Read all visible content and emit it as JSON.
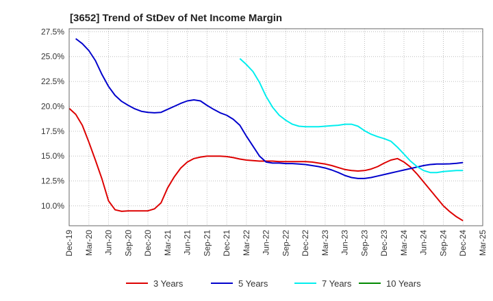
{
  "chart_data": {
    "type": "line",
    "title": "[3652]  Trend of StDev of Net Income Margin",
    "xlabel": "",
    "ylabel": "",
    "x_labels": [
      "Dec-19",
      "Mar-20",
      "Jun-20",
      "Sep-20",
      "Dec-20",
      "Mar-21",
      "Jun-21",
      "Sep-21",
      "Dec-21",
      "Mar-22",
      "Jun-22",
      "Sep-22",
      "Dec-22",
      "Mar-23",
      "Jun-23",
      "Sep-23",
      "Dec-23",
      "Mar-24",
      "Jun-24",
      "Sep-24",
      "Dec-24",
      "Mar-25"
    ],
    "y_ticks": [
      10.0,
      12.5,
      15.0,
      17.5,
      20.0,
      22.5,
      25.0,
      27.5
    ],
    "y_tick_labels": [
      "10.0%",
      "12.5%",
      "15.0%",
      "17.5%",
      "20.0%",
      "22.5%",
      "25.0%",
      "27.5%"
    ],
    "ylim": [
      8.0,
      27.8
    ],
    "grid": true,
    "legend_position": "bottom",
    "series": [
      {
        "name": "3 Years",
        "color": "#dd0000",
        "values": [
          [
            "Dec-19",
            19.8
          ],
          [
            "Jan-20",
            19.2
          ],
          [
            "Feb-20",
            18.1
          ],
          [
            "Mar-20",
            16.4
          ],
          [
            "Apr-20",
            14.6
          ],
          [
            "May-20",
            12.7
          ],
          [
            "Jun-20",
            10.5
          ],
          [
            "Jul-20",
            9.6
          ],
          [
            "Aug-20",
            9.45
          ],
          [
            "Sep-20",
            9.5
          ],
          [
            "Oct-20",
            9.5
          ],
          [
            "Nov-20",
            9.5
          ],
          [
            "Dec-20",
            9.5
          ],
          [
            "Jan-21",
            9.7
          ],
          [
            "Feb-21",
            10.3
          ],
          [
            "Mar-21",
            11.8
          ],
          [
            "Apr-21",
            12.9
          ],
          [
            "May-21",
            13.8
          ],
          [
            "Jun-21",
            14.4
          ],
          [
            "Jul-21",
            14.75
          ],
          [
            "Aug-21",
            14.9
          ],
          [
            "Sep-21",
            15.0
          ],
          [
            "Oct-21",
            15.0
          ],
          [
            "Nov-21",
            15.0
          ],
          [
            "Dec-21",
            14.95
          ],
          [
            "Jan-22",
            14.85
          ],
          [
            "Feb-22",
            14.7
          ],
          [
            "Mar-22",
            14.6
          ],
          [
            "Apr-22",
            14.55
          ],
          [
            "May-22",
            14.5
          ],
          [
            "Jun-22",
            14.5
          ],
          [
            "Jul-22",
            14.5
          ],
          [
            "Aug-22",
            14.45
          ],
          [
            "Sep-22",
            14.45
          ],
          [
            "Oct-22",
            14.45
          ],
          [
            "Nov-22",
            14.45
          ],
          [
            "Dec-22",
            14.45
          ],
          [
            "Jan-23",
            14.4
          ],
          [
            "Feb-23",
            14.3
          ],
          [
            "Mar-23",
            14.2
          ],
          [
            "Apr-23",
            14.05
          ],
          [
            "May-23",
            13.85
          ],
          [
            "Jun-23",
            13.65
          ],
          [
            "Jul-23",
            13.55
          ],
          [
            "Aug-23",
            13.5
          ],
          [
            "Sep-23",
            13.55
          ],
          [
            "Oct-23",
            13.7
          ],
          [
            "Nov-23",
            13.95
          ],
          [
            "Dec-23",
            14.3
          ],
          [
            "Jan-24",
            14.6
          ],
          [
            "Feb-24",
            14.75
          ],
          [
            "Mar-24",
            14.4
          ],
          [
            "Apr-24",
            13.9
          ],
          [
            "May-24",
            13.2
          ],
          [
            "Jun-24",
            12.4
          ],
          [
            "Jul-24",
            11.6
          ],
          [
            "Aug-24",
            10.8
          ],
          [
            "Sep-24",
            10.0
          ],
          [
            "Oct-24",
            9.4
          ],
          [
            "Nov-24",
            8.9
          ],
          [
            "Dec-24",
            8.5
          ]
        ]
      },
      {
        "name": "5 Years",
        "color": "#0000cc",
        "values": [
          [
            "Jan-20",
            26.8
          ],
          [
            "Feb-20",
            26.3
          ],
          [
            "Mar-20",
            25.6
          ],
          [
            "Apr-20",
            24.6
          ],
          [
            "May-20",
            23.2
          ],
          [
            "Jun-20",
            22.0
          ],
          [
            "Jul-20",
            21.1
          ],
          [
            "Aug-20",
            20.5
          ],
          [
            "Sep-20",
            20.1
          ],
          [
            "Oct-20",
            19.75
          ],
          [
            "Nov-20",
            19.5
          ],
          [
            "Dec-20",
            19.4
          ],
          [
            "Jan-21",
            19.35
          ],
          [
            "Feb-21",
            19.4
          ],
          [
            "Mar-21",
            19.7
          ],
          [
            "Apr-21",
            20.0
          ],
          [
            "May-21",
            20.3
          ],
          [
            "Jun-21",
            20.55
          ],
          [
            "Jul-21",
            20.65
          ],
          [
            "Aug-21",
            20.55
          ],
          [
            "Sep-21",
            20.1
          ],
          [
            "Oct-21",
            19.7
          ],
          [
            "Nov-21",
            19.35
          ],
          [
            "Dec-21",
            19.1
          ],
          [
            "Jan-22",
            18.7
          ],
          [
            "Feb-22",
            18.1
          ],
          [
            "Mar-22",
            17.0
          ],
          [
            "Apr-22",
            16.0
          ],
          [
            "May-22",
            15.0
          ],
          [
            "Jun-22",
            14.4
          ],
          [
            "Jul-22",
            14.3
          ],
          [
            "Aug-22",
            14.3
          ],
          [
            "Sep-22",
            14.25
          ],
          [
            "Oct-22",
            14.25
          ],
          [
            "Nov-22",
            14.2
          ],
          [
            "Dec-22",
            14.15
          ],
          [
            "Jan-23",
            14.05
          ],
          [
            "Feb-23",
            13.95
          ],
          [
            "Mar-23",
            13.8
          ],
          [
            "Apr-23",
            13.6
          ],
          [
            "May-23",
            13.35
          ],
          [
            "Jun-23",
            13.05
          ],
          [
            "Jul-23",
            12.85
          ],
          [
            "Aug-23",
            12.75
          ],
          [
            "Sep-23",
            12.75
          ],
          [
            "Oct-23",
            12.85
          ],
          [
            "Nov-23",
            13.0
          ],
          [
            "Dec-23",
            13.15
          ],
          [
            "Jan-24",
            13.3
          ],
          [
            "Feb-24",
            13.45
          ],
          [
            "Mar-24",
            13.6
          ],
          [
            "Apr-24",
            13.75
          ],
          [
            "May-24",
            13.9
          ],
          [
            "Jun-24",
            14.05
          ],
          [
            "Jul-24",
            14.15
          ],
          [
            "Aug-24",
            14.2
          ],
          [
            "Sep-24",
            14.2
          ],
          [
            "Oct-24",
            14.22
          ],
          [
            "Nov-24",
            14.28
          ],
          [
            "Dec-24",
            14.35
          ]
        ]
      },
      {
        "name": "7 Years",
        "color": "#00eeee",
        "values": [
          [
            "Feb-22",
            24.8
          ],
          [
            "Mar-22",
            24.2
          ],
          [
            "Apr-22",
            23.5
          ],
          [
            "May-22",
            22.4
          ],
          [
            "Jun-22",
            21.0
          ],
          [
            "Jul-22",
            19.9
          ],
          [
            "Aug-22",
            19.1
          ],
          [
            "Sep-22",
            18.6
          ],
          [
            "Oct-22",
            18.2
          ],
          [
            "Nov-22",
            18.0
          ],
          [
            "Dec-22",
            17.95
          ],
          [
            "Jan-23",
            17.95
          ],
          [
            "Feb-23",
            17.95
          ],
          [
            "Mar-23",
            18.0
          ],
          [
            "Apr-23",
            18.05
          ],
          [
            "May-23",
            18.1
          ],
          [
            "Jun-23",
            18.2
          ],
          [
            "Jul-23",
            18.2
          ],
          [
            "Aug-23",
            18.0
          ],
          [
            "Sep-23",
            17.55
          ],
          [
            "Oct-23",
            17.2
          ],
          [
            "Nov-23",
            16.95
          ],
          [
            "Dec-23",
            16.75
          ],
          [
            "Jan-24",
            16.5
          ],
          [
            "Feb-24",
            15.9
          ],
          [
            "Mar-24",
            15.2
          ],
          [
            "Apr-24",
            14.5
          ],
          [
            "May-24",
            13.95
          ],
          [
            "Jun-24",
            13.55
          ],
          [
            "Jul-24",
            13.35
          ],
          [
            "Aug-24",
            13.35
          ],
          [
            "Sep-24",
            13.45
          ],
          [
            "Oct-24",
            13.5
          ],
          [
            "Nov-24",
            13.55
          ],
          [
            "Dec-24",
            13.55
          ]
        ]
      },
      {
        "name": "10 Years",
        "color": "#008800",
        "values": []
      }
    ]
  }
}
